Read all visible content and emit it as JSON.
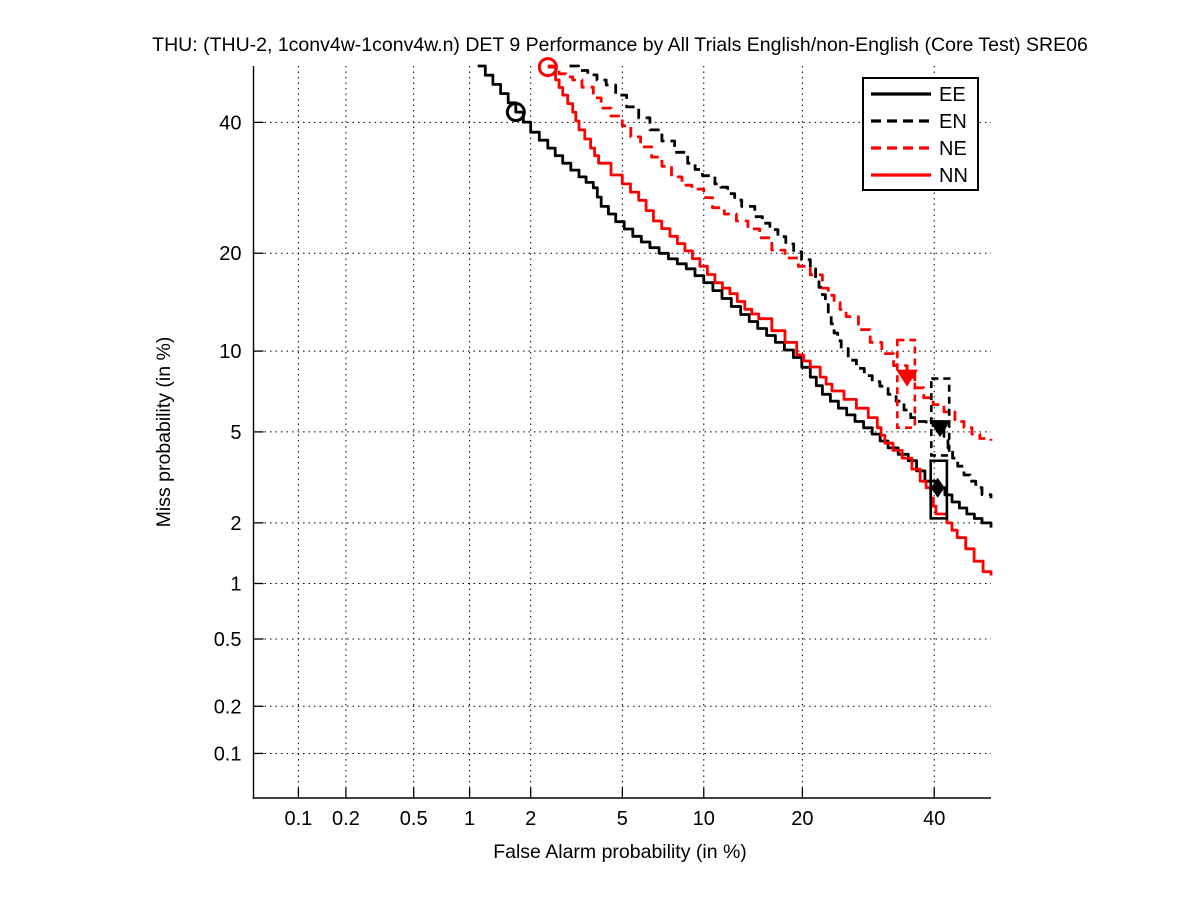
{
  "chart_data": {
    "type": "line",
    "title": "THU: (THU-2, 1conv4w-1conv4w.n) DET 9 Performance by All Trials English/non-English (Core Test) SRE06",
    "xlabel": "False Alarm probability (in %)",
    "ylabel": "Miss probability (in %)",
    "scale": "probit-normal-deviate",
    "grid": "dotted",
    "legend_position": "top-right",
    "xlim_pct": [
      0.05,
      50
    ],
    "ylim_pct": [
      0.05,
      50
    ],
    "xticks_pct": [
      0.1,
      0.2,
      0.5,
      1,
      2,
      5,
      10,
      20,
      40
    ],
    "xtick_labels": [
      "0.1",
      "0.2",
      "0.5",
      "1",
      "2",
      "5",
      "10",
      "20",
      "40"
    ],
    "yticks_pct": [
      0.1,
      0.2,
      0.5,
      1,
      2,
      5,
      10,
      20,
      40
    ],
    "ytick_labels": [
      "0.1",
      "0.2",
      "0.5",
      "1",
      "2",
      "5",
      "10",
      "20",
      "40"
    ],
    "colors": {
      "black": "#000000",
      "red": "#ff0000"
    },
    "series": [
      {
        "name": "EE",
        "color": "#000000",
        "style": "solid",
        "points": [
          [
            1.1,
            50
          ],
          [
            1.7,
            41.8
          ],
          [
            2.0,
            38.3
          ],
          [
            2.4,
            35.6
          ],
          [
            2.8,
            33.1
          ],
          [
            3.3,
            30.9
          ],
          [
            3.8,
            29.2
          ],
          [
            4.1,
            26.4
          ],
          [
            4.7,
            24.2
          ],
          [
            5.5,
            22.2
          ],
          [
            6.4,
            20.7
          ],
          [
            7.5,
            19.3
          ],
          [
            8.7,
            18.1
          ],
          [
            10,
            16.5
          ],
          [
            11.5,
            14.8
          ],
          [
            13.2,
            13.2
          ],
          [
            14.9,
            11.9
          ],
          [
            16.8,
            10.7
          ],
          [
            18.9,
            9.5
          ],
          [
            21,
            8.1
          ],
          [
            22.6,
            7.0
          ],
          [
            24.8,
            6.2
          ],
          [
            27.2,
            5.5
          ],
          [
            29.8,
            4.9
          ],
          [
            32.3,
            4.3
          ],
          [
            35.6,
            3.8
          ],
          [
            38.4,
            3.1
          ],
          [
            40.6,
            2.9
          ],
          [
            43.1,
            2.5
          ],
          [
            45.7,
            2.2
          ],
          [
            48.4,
            2.0
          ],
          [
            50,
            1.9
          ]
        ]
      },
      {
        "name": "EN",
        "color": "#000000",
        "style": "dashed",
        "points": [
          [
            3.0,
            50
          ],
          [
            3.6,
            48.4
          ],
          [
            4.3,
            46.6
          ],
          [
            4.7,
            44.8
          ],
          [
            5.2,
            42.7
          ],
          [
            5.8,
            40.8
          ],
          [
            6.4,
            38.7
          ],
          [
            7.1,
            36.8
          ],
          [
            7.9,
            34.9
          ],
          [
            8.8,
            33.1
          ],
          [
            9.9,
            31.1
          ],
          [
            10.9,
            29.8
          ],
          [
            11.4,
            29.3
          ],
          [
            12,
            28.3
          ],
          [
            13.3,
            26.4
          ],
          [
            14.6,
            24.9
          ],
          [
            16.2,
            23.1
          ],
          [
            18,
            21.2
          ],
          [
            19.9,
            19.2
          ],
          [
            21,
            18.1
          ],
          [
            21.7,
            16.8
          ],
          [
            22.6,
            15.2
          ],
          [
            23.4,
            13.2
          ],
          [
            24.2,
            11.5
          ],
          [
            25.2,
            10.2
          ],
          [
            26.2,
            9.3
          ],
          [
            27.4,
            8.7
          ],
          [
            28.6,
            8.2
          ],
          [
            29.8,
            7.8
          ],
          [
            31,
            7.5
          ],
          [
            32.3,
            7.0
          ],
          [
            33.6,
            6.6
          ],
          [
            34.9,
            6.1
          ],
          [
            36,
            5.7
          ],
          [
            37.2,
            5.5
          ],
          [
            38.6,
            5.4
          ],
          [
            41,
            5.2
          ],
          [
            41.7,
            4.8
          ],
          [
            42.4,
            4.3
          ],
          [
            43.2,
            3.9
          ],
          [
            44.1,
            3.6
          ],
          [
            45.2,
            3.3
          ],
          [
            46.3,
            3.1
          ],
          [
            47.3,
            2.9
          ],
          [
            48.4,
            2.7
          ],
          [
            50,
            2.6
          ]
        ]
      },
      {
        "name": "NE",
        "color": "#ff0000",
        "style": "dashed",
        "points": [
          [
            2.4,
            50
          ],
          [
            2.7,
            48.6
          ],
          [
            3.1,
            47.5
          ],
          [
            3.4,
            46.2
          ],
          [
            3.8,
            44.3
          ],
          [
            4.1,
            42.5
          ],
          [
            4.5,
            41.1
          ],
          [
            5,
            39.4
          ],
          [
            5.4,
            37.5
          ],
          [
            5.9,
            35.8
          ],
          [
            6.5,
            34.1
          ],
          [
            7.1,
            32.6
          ],
          [
            7.7,
            30.9
          ],
          [
            8.4,
            29.6
          ],
          [
            9.1,
            29
          ],
          [
            10,
            27.7
          ],
          [
            10.7,
            26.2
          ],
          [
            11.7,
            25.3
          ],
          [
            12.8,
            24.3
          ],
          [
            13.9,
            23.2
          ],
          [
            15.1,
            22
          ],
          [
            16.4,
            20.4
          ],
          [
            17.9,
            19.4
          ],
          [
            19.5,
            18.4
          ],
          [
            21,
            17.4
          ],
          [
            22.6,
            15.9
          ],
          [
            24.2,
            14.4
          ],
          [
            25.9,
            13
          ],
          [
            27.7,
            11.8
          ],
          [
            29.5,
            10.7
          ],
          [
            31.3,
            9.8
          ],
          [
            33.2,
            8.9
          ],
          [
            35.4,
            8.1
          ],
          [
            36.7,
            7.4
          ],
          [
            38.2,
            6.8
          ],
          [
            39.8,
            6.4
          ],
          [
            41.7,
            6
          ],
          [
            43.6,
            5.5
          ],
          [
            45.2,
            5.2
          ],
          [
            46.6,
            4.9
          ],
          [
            48,
            4.7
          ],
          [
            50,
            4.6
          ]
        ]
      },
      {
        "name": "NN",
        "color": "#ff0000",
        "style": "solid",
        "points": [
          [
            2.4,
            49.8
          ],
          [
            2.6,
            47.5
          ],
          [
            2.8,
            44.8
          ],
          [
            3.1,
            41.8
          ],
          [
            3.3,
            38.7
          ],
          [
            3.7,
            35.6
          ],
          [
            4.0,
            33.1
          ],
          [
            4.5,
            31.2
          ],
          [
            5.0,
            29.8
          ],
          [
            5.8,
            27.3
          ],
          [
            6.6,
            24.3
          ],
          [
            7.6,
            22.2
          ],
          [
            8.6,
            20.3
          ],
          [
            9.7,
            18.4
          ],
          [
            10.9,
            16.5
          ],
          [
            12.2,
            15.3
          ],
          [
            13.6,
            13.7
          ],
          [
            15,
            12.8
          ],
          [
            16.4,
            11.7
          ],
          [
            17.9,
            10.7
          ],
          [
            19.3,
            9.7
          ],
          [
            21,
            8.8
          ],
          [
            22.3,
            8.1
          ],
          [
            23.9,
            7.2
          ],
          [
            25.6,
            6.7
          ],
          [
            27.4,
            6.2
          ],
          [
            29.2,
            5.7
          ],
          [
            30.6,
            5.2
          ],
          [
            31.8,
            4.5
          ],
          [
            33.1,
            4.2
          ],
          [
            34.6,
            3.9
          ],
          [
            36.2,
            3.5
          ],
          [
            37.6,
            3.1
          ],
          [
            38.6,
            2.9
          ],
          [
            39.4,
            2.6
          ],
          [
            40.3,
            2.2
          ],
          [
            42.2,
            2.0
          ],
          [
            44,
            1.7
          ],
          [
            45.5,
            1.5
          ],
          [
            47,
            1.3
          ],
          [
            48.6,
            1.15
          ],
          [
            50,
            1.1
          ]
        ]
      }
    ],
    "markers": [
      {
        "curve": "EE",
        "type": "circle",
        "fa": 1.7,
        "miss": 41.8,
        "color": "#000000"
      },
      {
        "curve": "NN",
        "type": "circle",
        "fa": 2.4,
        "miss": 49.8,
        "color": "#ff0000"
      },
      {
        "curve": "NE",
        "type": "triangle-down",
        "fa": 35.4,
        "miss": 8.1,
        "color": "#ff0000"
      },
      {
        "curve": "EN",
        "type": "triangle-down",
        "fa": 41.0,
        "miss": 5.2,
        "color": "#000000"
      },
      {
        "curve": "EE",
        "type": "diamond",
        "fa": 40.6,
        "miss": 2.9,
        "color": "#000000"
      }
    ],
    "error_boxes": [
      {
        "curve": "NE",
        "fa_range": [
          33.8,
          36.7
        ],
        "miss_range": [
          5.2,
          10.9
        ],
        "color": "#ff0000",
        "style": "dashed"
      },
      {
        "curve": "EN",
        "fa_range": [
          39.5,
          42.6
        ],
        "miss_range": [
          4.0,
          8.0
        ],
        "color": "#000000",
        "style": "dashed"
      },
      {
        "curve": "EE",
        "fa_range": [
          39.4,
          42.2
        ],
        "miss_range": [
          2.1,
          3.8
        ],
        "color": "#000000",
        "style": "solid"
      }
    ],
    "legend": {
      "entries": [
        "EE",
        "EN",
        "NE",
        "NN"
      ]
    }
  }
}
